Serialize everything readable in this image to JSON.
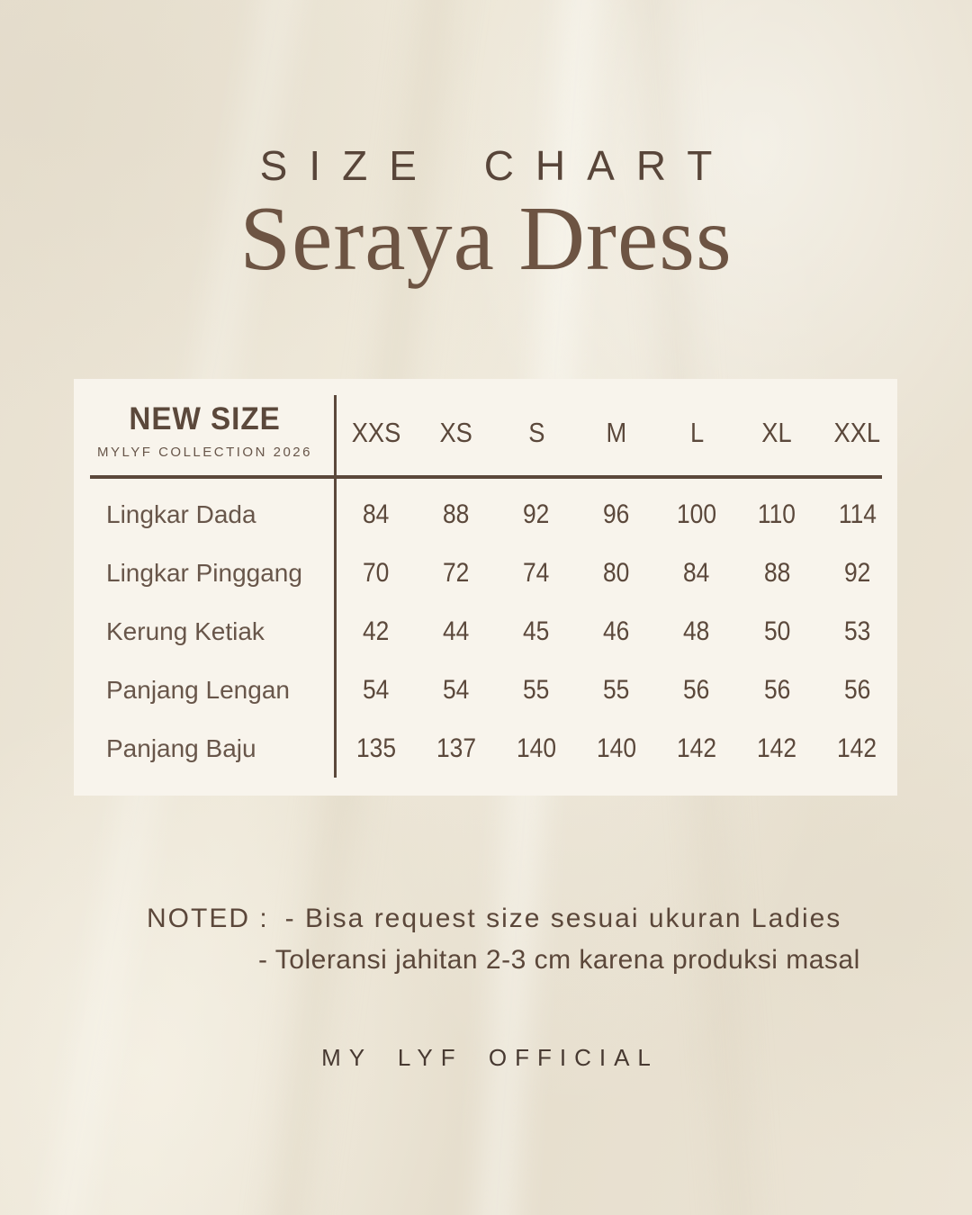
{
  "page": {
    "eyebrow": "SIZE CHART",
    "title": "Seraya Dress",
    "brand": "MY LYF OFFICIAL"
  },
  "table": {
    "header": {
      "title": "NEW SIZE",
      "subtitle": "MYLYF COLLECTION 2026"
    },
    "sizes": [
      "XXS",
      "XS",
      "S",
      "M",
      "L",
      "XL",
      "XXL"
    ],
    "rows": [
      {
        "label": "Lingkar Dada",
        "values": [
          84,
          88,
          92,
          96,
          100,
          110,
          114
        ]
      },
      {
        "label": "Lingkar Pinggang",
        "values": [
          70,
          72,
          74,
          80,
          84,
          88,
          92
        ]
      },
      {
        "label": "Kerung Ketiak",
        "values": [
          42,
          44,
          45,
          46,
          48,
          50,
          53
        ]
      },
      {
        "label": "Panjang Lengan",
        "values": [
          54,
          54,
          55,
          55,
          56,
          56,
          56
        ]
      },
      {
        "label": "Panjang Baju",
        "values": [
          135,
          137,
          140,
          140,
          142,
          142,
          142
        ]
      }
    ]
  },
  "notes": {
    "label": "NOTED :",
    "items": [
      "- Bisa request size sesuai ukuran Ladies",
      "- Toleransi jahitan 2-3 cm karena produksi masal"
    ]
  },
  "colors": {
    "ink": "#5b483b",
    "ink-soft": "#68564a",
    "title": "#6d5443",
    "panel": "#f8f4ec"
  }
}
